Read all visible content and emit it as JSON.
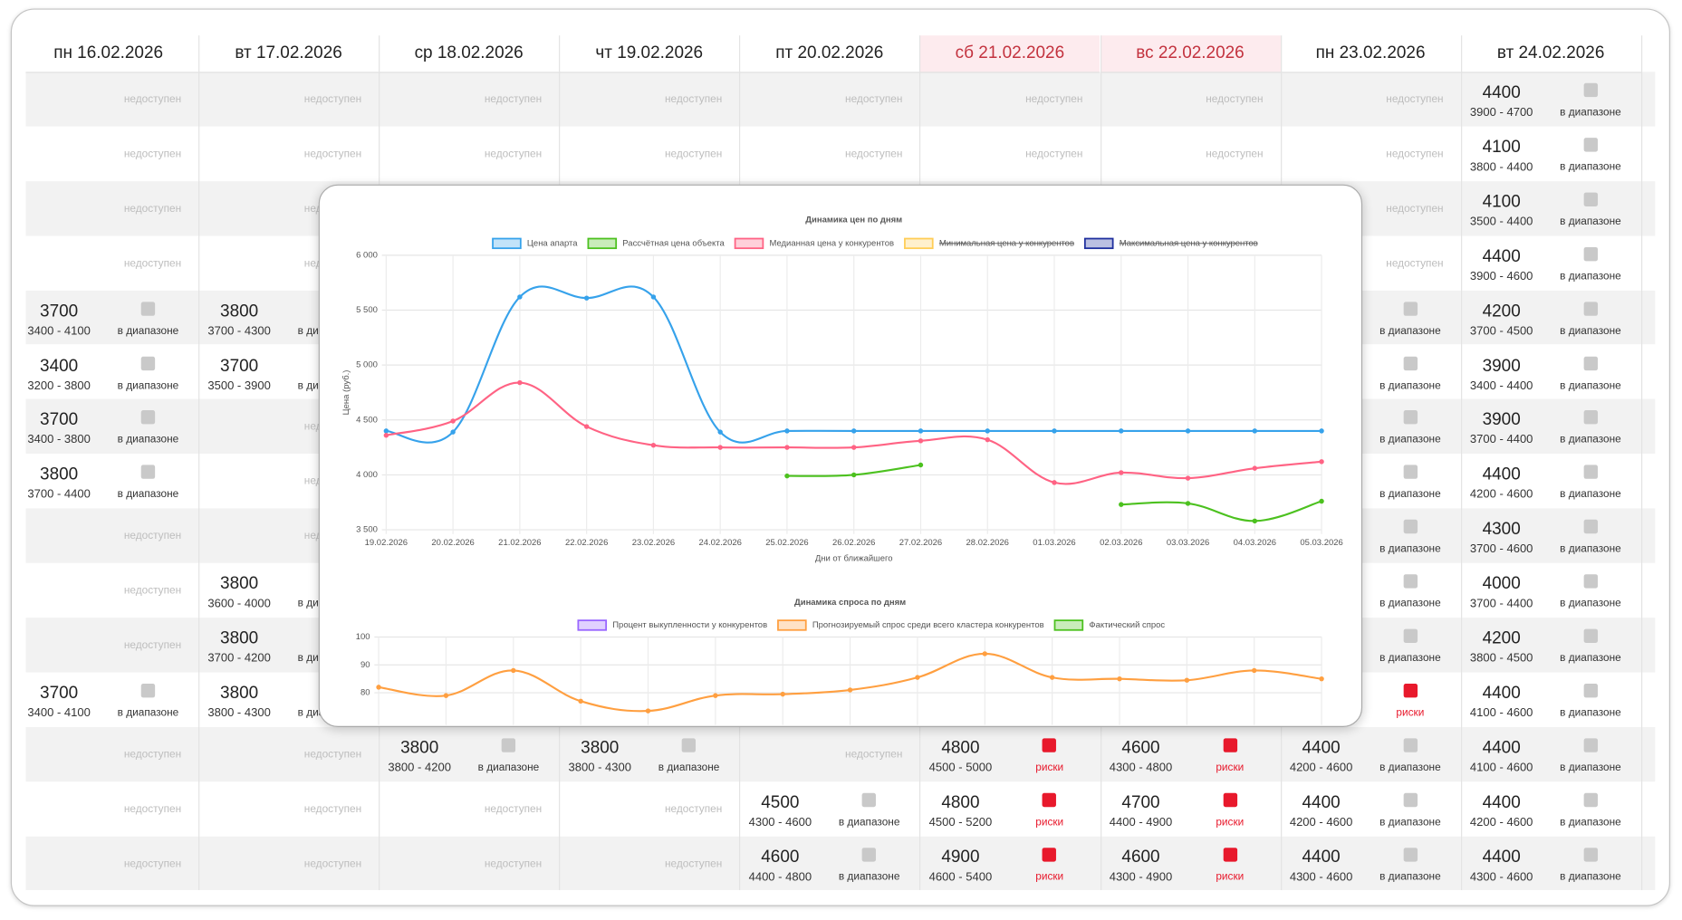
{
  "table": {
    "headers": [
      {
        "label": "пн 16.02.2026",
        "weekend": false
      },
      {
        "label": "вт 17.02.2026",
        "weekend": false
      },
      {
        "label": "ср 18.02.2026",
        "weekend": false
      },
      {
        "label": "чт 19.02.2026",
        "weekend": false
      },
      {
        "label": "пт 20.02.2026",
        "weekend": false
      },
      {
        "label": "сб 21.02.2026",
        "weekend": true
      },
      {
        "label": "вс 22.02.2026",
        "weekend": true
      },
      {
        "label": "пн 23.02.2026",
        "weekend": false
      },
      {
        "label": "вт 24.02.2026",
        "weekend": false
      }
    ],
    "rows": [
      [
        "недоступен",
        "недоступен",
        "недоступен",
        "недоступен",
        "недоступен",
        "недоступен",
        "недоступен",
        "недоступен",
        {
          "price": 4400,
          "range": "3900 - 4700",
          "status": "в диапазоне"
        }
      ],
      [
        "недоступен",
        "недоступен",
        "недоступен",
        "недоступен",
        "недоступен",
        "недоступен",
        "недоступен",
        "недоступен",
        {
          "price": 4100,
          "range": "3800 - 4400",
          "status": "в диапазоне"
        }
      ],
      [
        "недоступен",
        "недоступен",
        null,
        null,
        null,
        null,
        null,
        "недоступен",
        {
          "price": 4100,
          "range": "3500 - 4400",
          "status": "в диапазоне"
        }
      ],
      [
        "недоступен",
        "недоступен",
        null,
        null,
        null,
        null,
        null,
        "недоступен",
        {
          "price": 4400,
          "range": "3900 - 4600",
          "status": "в диапазоне"
        }
      ],
      [
        {
          "price": 3700,
          "range": "3400 - 4100",
          "status": "в диапазоне"
        },
        {
          "price": 3800,
          "range": "3700 - 4300",
          "status": "в диапазоне"
        },
        null,
        null,
        null,
        null,
        null,
        {
          "status": "в диапазоне"
        },
        {
          "price": 4200,
          "range": "3700 - 4500",
          "status": "в диапазоне"
        }
      ],
      [
        {
          "price": 3400,
          "range": "3200 - 3800",
          "status": "в диапазоне"
        },
        {
          "price": 3700,
          "range": "3500 - 3900",
          "status": "в диапазоне"
        },
        null,
        null,
        null,
        null,
        null,
        {
          "status": "в диапазоне"
        },
        {
          "price": 3900,
          "range": "3400 - 4400",
          "status": "в диапазоне"
        }
      ],
      [
        {
          "price": 3700,
          "range": "3400 - 3800",
          "status": "в диапазоне"
        },
        "недоступен",
        null,
        null,
        null,
        null,
        null,
        {
          "status": "в диапазоне"
        },
        {
          "price": 3900,
          "range": "3700 - 4400",
          "status": "в диапазоне"
        }
      ],
      [
        {
          "price": 3800,
          "range": "3700 - 4400",
          "status": "в диапазоне"
        },
        "недоступен",
        null,
        null,
        null,
        null,
        null,
        {
          "status": "в диапазоне"
        },
        {
          "price": 4400,
          "range": "4200 - 4600",
          "status": "в диапазоне"
        }
      ],
      [
        "недоступен",
        "недоступен",
        null,
        null,
        null,
        null,
        null,
        {
          "status": "в диапазоне"
        },
        {
          "price": 4300,
          "range": "3700 - 4600",
          "status": "в диапазоне"
        }
      ],
      [
        "недоступен",
        {
          "price": 3800,
          "range": "3600 - 4000",
          "status": "в диапазоне"
        },
        null,
        null,
        null,
        null,
        null,
        {
          "status": "в диапазоне"
        },
        {
          "price": 4000,
          "range": "3700 - 4400",
          "status": "в диапазоне"
        }
      ],
      [
        "недоступен",
        {
          "price": 3800,
          "range": "3700 - 4200",
          "status": "в диапазоне"
        },
        null,
        null,
        null,
        null,
        null,
        {
          "status": "в диапазоне"
        },
        {
          "price": 4200,
          "range": "3800 - 4500",
          "status": "в диапазоне"
        }
      ],
      [
        {
          "price": 3700,
          "range": "3400 - 4100",
          "status": "в диапазоне"
        },
        {
          "price": 3800,
          "range": "3800 - 4300",
          "status": "в диапазоне"
        },
        null,
        null,
        null,
        null,
        null,
        {
          "status": "риски",
          "alert": true
        },
        {
          "price": 4400,
          "range": "4100 - 4600",
          "status": "в диапазоне"
        }
      ],
      [
        "недоступен",
        "недоступен",
        {
          "price": 3800,
          "range": "3800 - 4200",
          "status": "в диапазоне"
        },
        {
          "price": 3800,
          "range": "3800 - 4300",
          "status": "в диапазоне"
        },
        "недоступен",
        {
          "price": 4800,
          "range": "4500 - 5000",
          "status": "риски",
          "alert": true
        },
        {
          "price": 4600,
          "range": "4300 - 4800",
          "status": "риски",
          "alert": true
        },
        {
          "price": 4400,
          "range": "4200 - 4600",
          "status": "в диапазоне"
        },
        {
          "price": 4400,
          "range": "4100 - 4600",
          "status": "в диапазоне"
        }
      ],
      [
        "недоступен",
        "недоступен",
        "недоступен",
        "недоступен",
        {
          "price": 4500,
          "range": "4300 - 4600",
          "status": "в диапазоне"
        },
        {
          "price": 4800,
          "range": "4500 - 5200",
          "status": "риски",
          "alert": true
        },
        {
          "price": 4700,
          "range": "4400 - 4900",
          "status": "риски",
          "alert": true
        },
        {
          "price": 4400,
          "range": "4200 - 4600",
          "status": "в диапазоне"
        },
        {
          "price": 4400,
          "range": "4200 - 4600",
          "status": "в диапазоне"
        }
      ],
      [
        "недоступен",
        "недоступен",
        "недоступен",
        "недоступен",
        {
          "price": 4600,
          "range": "4400 - 4800",
          "status": "в диапазоне"
        },
        {
          "price": 4900,
          "range": "4600 - 5400",
          "status": "риски",
          "alert": true
        },
        {
          "price": 4600,
          "range": "4300 - 4900",
          "status": "риски",
          "alert": true
        },
        {
          "price": 4400,
          "range": "4300 - 4600",
          "status": "в диапазоне"
        },
        {
          "price": 4400,
          "range": "4300 - 4600",
          "status": "в диапазоне"
        }
      ]
    ]
  },
  "chart_data": [
    {
      "type": "line",
      "title": "Динамика цен по дням",
      "x_label": "Дни от ближайшего",
      "y_label": "Цена (руб.)",
      "categories": [
        "19.02.2026",
        "20.02.2026",
        "21.02.2026",
        "22.02.2026",
        "23.02.2026",
        "24.02.2026",
        "25.02.2026",
        "26.02.2026",
        "27.02.2026",
        "28.02.2026",
        "01.03.2026",
        "02.03.2026",
        "03.03.2026",
        "04.03.2026",
        "05.03.2026"
      ],
      "series": [
        {
          "name": "Цена апарта",
          "color": "#36a2eb",
          "values": [
            4400,
            4390,
            5620,
            5610,
            5620,
            4390,
            4400,
            4400,
            4400,
            4400,
            4400,
            4400,
            4400,
            4400,
            4400
          ]
        },
        {
          "name": "Рассчётная цена объекта",
          "color": "#4cc11f",
          "values": [
            null,
            null,
            null,
            null,
            null,
            null,
            3990,
            4000,
            4090,
            null,
            null,
            3730,
            3740,
            3580,
            3760
          ]
        },
        {
          "name": "Медианная цена у конкурентов",
          "color": "#ff6384",
          "values": [
            4360,
            4490,
            4840,
            4440,
            4270,
            4250,
            4250,
            4250,
            4310,
            4320,
            3930,
            4020,
            3970,
            4060,
            4120
          ]
        },
        {
          "name": "Минимальная цена у конкурентов",
          "color": "#ffcd56",
          "hidden": true
        },
        {
          "name": "Максимальная цена у конкурентов",
          "color": "#1f2f9e",
          "hidden": true
        }
      ],
      "ylim": [
        3500,
        6000
      ],
      "yticks": [
        {
          "value": 3500,
          "label": "3 500"
        },
        {
          "value": 4000,
          "label": "4 000"
        },
        {
          "value": 4500,
          "label": "4 500"
        },
        {
          "value": 5000,
          "label": "5 000"
        },
        {
          "value": 5500,
          "label": "5 500"
        },
        {
          "value": 6000,
          "label": "6 000"
        }
      ],
      "grid": true
    },
    {
      "type": "line",
      "title": "Динамика спроса по дням",
      "series": [
        {
          "name": "Процент выкупленности у конкурентов",
          "color": "#9966ff"
        },
        {
          "name": "Прогнозируемый спрос среди всего кластера конкурентов",
          "color": "#ff9f40",
          "values": [
            82,
            79,
            88,
            77,
            73.5,
            79,
            79.5,
            81,
            85.5,
            94,
            85.5,
            85,
            84.5,
            88,
            85
          ]
        },
        {
          "name": "Фактический спрос",
          "color": "#4cc11f"
        }
      ],
      "ylim": [
        70,
        100
      ],
      "yticks": [
        80,
        90,
        100
      ],
      "grid": true
    }
  ]
}
